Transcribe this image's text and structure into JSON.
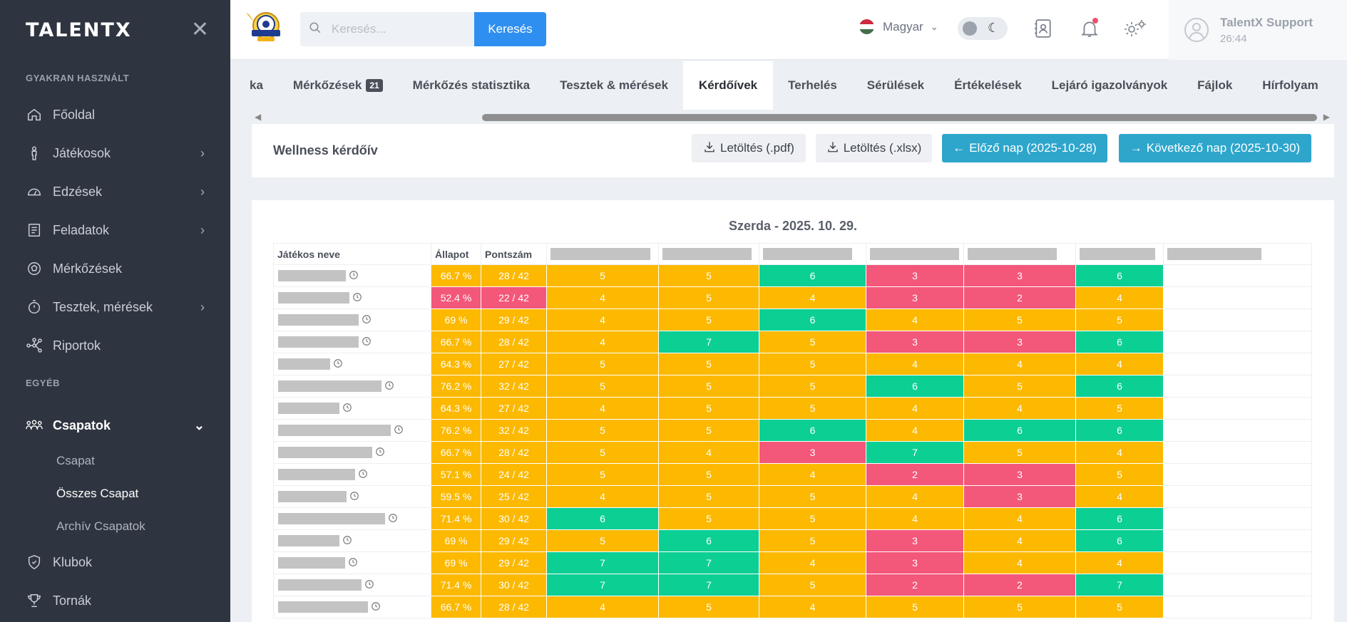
{
  "sidebar": {
    "logo": "TALENTX",
    "sections": {
      "frequent": "GYAKRAN HASZNÁLT",
      "other": "EGYÉB"
    },
    "items": [
      {
        "label": "Főoldal",
        "icon": "home-icon"
      },
      {
        "label": "Játékosok",
        "icon": "player-icon"
      },
      {
        "label": "Edzések",
        "icon": "training-icon"
      },
      {
        "label": "Feladatok",
        "icon": "tasks-icon"
      },
      {
        "label": "Mérkőzések",
        "icon": "ball-icon"
      },
      {
        "label": "Tesztek, mérések",
        "icon": "stopwatch-icon"
      },
      {
        "label": "Riportok",
        "icon": "reports-icon"
      }
    ],
    "teams": {
      "label": "Csapatok",
      "icon": "teams-icon"
    },
    "sub": [
      "Csapat",
      "Összes Csapat",
      "Archív Csapatok"
    ],
    "bottom": [
      {
        "label": "Klubok",
        "icon": "shield-icon"
      },
      {
        "label": "Tornák",
        "icon": "trophy-icon"
      }
    ]
  },
  "topbar": {
    "search_placeholder": "Keresés...",
    "search_button": "Keresés",
    "language": "Magyar",
    "user_name": "TalentX Support",
    "session_time": "26:44"
  },
  "tabs": [
    {
      "label": "ka"
    },
    {
      "label": "Mérkőzések",
      "badge": "21"
    },
    {
      "label": "Mérkőzés statisztika"
    },
    {
      "label": "Tesztek & mérések"
    },
    {
      "label": "Kérdőívek",
      "active": true
    },
    {
      "label": "Terhelés"
    },
    {
      "label": "Sérülések"
    },
    {
      "label": "Értékelések"
    },
    {
      "label": "Lejáró igazolványok"
    },
    {
      "label": "Fájlok"
    },
    {
      "label": "Hírfolyam"
    }
  ],
  "card": {
    "title": "Wellness kérdőív",
    "download_pdf": "Letöltés (.pdf)",
    "download_xlsx": "Letöltés (.xlsx)",
    "prev_day": "Előző nap (2025-10-28)",
    "next_day": "Következő nap (2025-10-30)"
  },
  "table": {
    "date": "Szerda - 2025. 10. 29.",
    "headers": {
      "name": "Játékos neve",
      "status": "Állapot",
      "score": "Pontszám"
    },
    "rows": [
      {
        "status": "66.7 %",
        "score": "28 / 42",
        "s": "y",
        "v": [
          5,
          5,
          6,
          3,
          3,
          6
        ],
        "c": [
          "y",
          "y",
          "g",
          "r",
          "r",
          "g"
        ]
      },
      {
        "status": "52.4 %",
        "score": "22 / 42",
        "s": "r",
        "v": [
          4,
          5,
          4,
          3,
          2,
          4
        ],
        "c": [
          "y",
          "y",
          "y",
          "r",
          "r",
          "y"
        ]
      },
      {
        "status": "69 %",
        "score": "29 / 42",
        "s": "y",
        "v": [
          4,
          5,
          6,
          4,
          5,
          5
        ],
        "c": [
          "y",
          "y",
          "g",
          "y",
          "y",
          "y"
        ]
      },
      {
        "status": "66.7 %",
        "score": "28 / 42",
        "s": "y",
        "v": [
          4,
          7,
          5,
          3,
          3,
          6
        ],
        "c": [
          "y",
          "g",
          "y",
          "r",
          "r",
          "g"
        ]
      },
      {
        "status": "64.3 %",
        "score": "27 / 42",
        "s": "y",
        "v": [
          5,
          5,
          5,
          4,
          4,
          4
        ],
        "c": [
          "y",
          "y",
          "y",
          "y",
          "y",
          "y"
        ]
      },
      {
        "status": "76.2 %",
        "score": "32 / 42",
        "s": "y",
        "v": [
          5,
          5,
          5,
          6,
          5,
          6
        ],
        "c": [
          "y",
          "y",
          "y",
          "g",
          "y",
          "g"
        ]
      },
      {
        "status": "64.3 %",
        "score": "27 / 42",
        "s": "y",
        "v": [
          4,
          5,
          5,
          4,
          4,
          5
        ],
        "c": [
          "y",
          "y",
          "y",
          "y",
          "y",
          "y"
        ]
      },
      {
        "status": "76.2 %",
        "score": "32 / 42",
        "s": "y",
        "v": [
          5,
          5,
          6,
          4,
          6,
          6
        ],
        "c": [
          "y",
          "y",
          "g",
          "y",
          "g",
          "g"
        ]
      },
      {
        "status": "66.7 %",
        "score": "28 / 42",
        "s": "y",
        "v": [
          5,
          4,
          3,
          7,
          5,
          4
        ],
        "c": [
          "y",
          "y",
          "r",
          "g",
          "y",
          "y"
        ]
      },
      {
        "status": "57.1 %",
        "score": "24 / 42",
        "s": "y",
        "v": [
          5,
          5,
          4,
          2,
          3,
          5
        ],
        "c": [
          "y",
          "y",
          "y",
          "r",
          "r",
          "y"
        ]
      },
      {
        "status": "59.5 %",
        "score": "25 / 42",
        "s": "y",
        "v": [
          4,
          5,
          5,
          4,
          3,
          4
        ],
        "c": [
          "y",
          "y",
          "y",
          "y",
          "r",
          "y"
        ]
      },
      {
        "status": "71.4 %",
        "score": "30 / 42",
        "s": "y",
        "v": [
          6,
          5,
          5,
          4,
          4,
          6
        ],
        "c": [
          "g",
          "y",
          "y",
          "y",
          "y",
          "g"
        ]
      },
      {
        "status": "69 %",
        "score": "29 / 42",
        "s": "y",
        "v": [
          5,
          6,
          5,
          3,
          4,
          6
        ],
        "c": [
          "y",
          "g",
          "y",
          "r",
          "y",
          "g"
        ]
      },
      {
        "status": "69 %",
        "score": "29 / 42",
        "s": "y",
        "v": [
          7,
          7,
          4,
          3,
          4,
          4
        ],
        "c": [
          "g",
          "g",
          "y",
          "r",
          "y",
          "y"
        ]
      },
      {
        "status": "71.4 %",
        "score": "30 / 42",
        "s": "y",
        "v": [
          7,
          7,
          5,
          2,
          2,
          7
        ],
        "c": [
          "g",
          "g",
          "y",
          "r",
          "r",
          "g"
        ]
      },
      {
        "status": "66.7 %",
        "score": "28 / 42",
        "s": "y",
        "v": [
          4,
          5,
          4,
          5,
          5,
          5
        ],
        "c": [
          "y",
          "y",
          "y",
          "y",
          "y",
          "y"
        ]
      }
    ]
  },
  "colors": {
    "yellow": "#fcb900",
    "green": "#0ccf94",
    "red": "#f3577a",
    "accent": "#2ea6cc"
  }
}
